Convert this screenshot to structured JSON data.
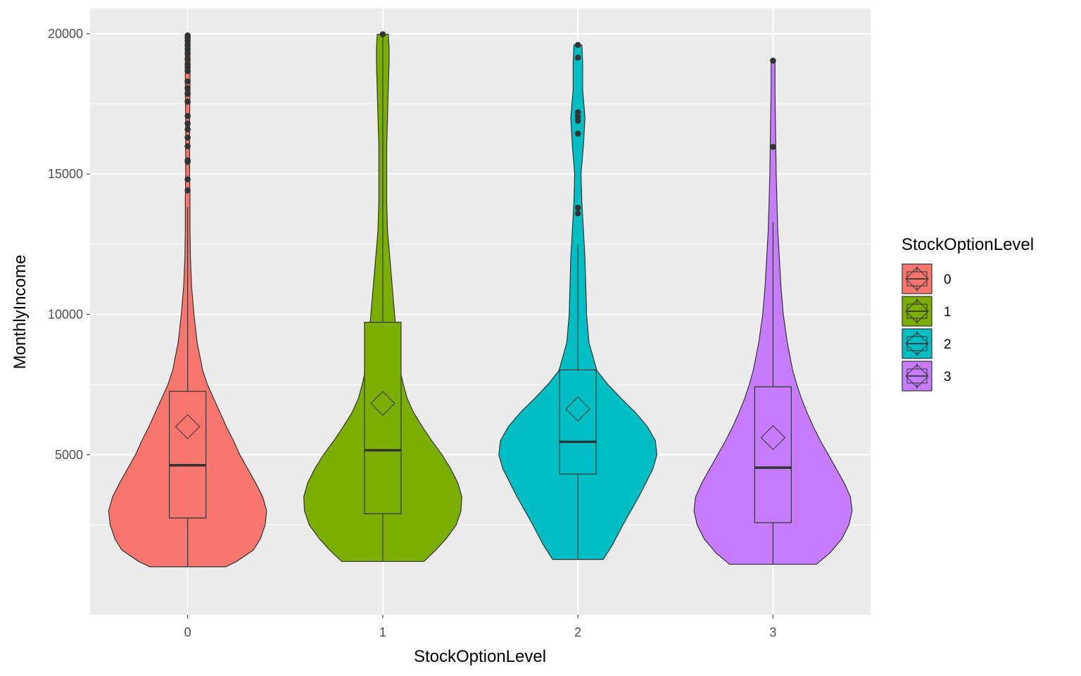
{
  "chart_data": {
    "type": "violin",
    "xlabel": "StockOptionLevel",
    "ylabel": "MonthlyIncome",
    "categories": [
      "0",
      "1",
      "2",
      "3"
    ],
    "ylim": [
      -700,
      20900
    ],
    "y_ticks": [
      5000,
      10000,
      15000,
      20000
    ],
    "y_tick_labels": [
      "5000",
      "10000",
      "15000",
      "20000"
    ],
    "grid": true,
    "legend": {
      "title": "StockOptionLevel",
      "position": "right",
      "entries": [
        "0",
        "1",
        "2",
        "3"
      ]
    },
    "colors": [
      "#F8766D",
      "#7CAE00",
      "#00BFC4",
      "#C77CFF"
    ],
    "series": [
      {
        "category": "0",
        "box": {
          "min": 1009,
          "q1": 2745,
          "median": 4625,
          "q3": 7260,
          "whisker_high": 13830,
          "mean": 6000
        },
        "outliers": [
          14420,
          14810,
          15440,
          15490,
          15990,
          16300,
          16590,
          16800,
          17070,
          17580,
          17860,
          18060,
          18300,
          18670,
          18800,
          18900,
          19100,
          19300,
          19450,
          19600,
          19750,
          19850,
          19940
        ],
        "density": [
          [
            1009,
            0.48
          ],
          [
            1200,
            0.62
          ],
          [
            1600,
            0.83
          ],
          [
            2000,
            0.92
          ],
          [
            2500,
            0.98
          ],
          [
            3000,
            1.0
          ],
          [
            3500,
            0.95
          ],
          [
            4000,
            0.86
          ],
          [
            4500,
            0.76
          ],
          [
            5000,
            0.66
          ],
          [
            5500,
            0.58
          ],
          [
            6000,
            0.49
          ],
          [
            6500,
            0.41
          ],
          [
            7000,
            0.33
          ],
          [
            7500,
            0.25
          ],
          [
            8000,
            0.19
          ],
          [
            9000,
            0.12
          ],
          [
            10000,
            0.08
          ],
          [
            11000,
            0.05
          ],
          [
            12000,
            0.035
          ],
          [
            13000,
            0.03
          ],
          [
            14000,
            0.03
          ],
          [
            15000,
            0.025
          ],
          [
            16000,
            0.025
          ],
          [
            17000,
            0.025
          ],
          [
            18000,
            0.03
          ],
          [
            19000,
            0.03
          ],
          [
            19940,
            0.03
          ]
        ]
      },
      {
        "category": "1",
        "box": {
          "min": 1200,
          "q1": 2900,
          "median": 5160,
          "q3": 9720,
          "whisker_high": 19980,
          "mean": 6830
        },
        "outliers": [
          19980
        ],
        "density": [
          [
            1200,
            0.52
          ],
          [
            1600,
            0.67
          ],
          [
            2000,
            0.8
          ],
          [
            2500,
            0.93
          ],
          [
            3000,
            0.99
          ],
          [
            3500,
            1.0
          ],
          [
            4000,
            0.95
          ],
          [
            4500,
            0.86
          ],
          [
            5000,
            0.75
          ],
          [
            5500,
            0.62
          ],
          [
            6000,
            0.5
          ],
          [
            6500,
            0.39
          ],
          [
            7000,
            0.31
          ],
          [
            7500,
            0.26
          ],
          [
            8000,
            0.22
          ],
          [
            9000,
            0.18
          ],
          [
            10000,
            0.15
          ],
          [
            11000,
            0.12
          ],
          [
            12000,
            0.09
          ],
          [
            13000,
            0.06
          ],
          [
            14000,
            0.05
          ],
          [
            15000,
            0.05
          ],
          [
            16000,
            0.05
          ],
          [
            17000,
            0.06
          ],
          [
            18000,
            0.07
          ],
          [
            19000,
            0.08
          ],
          [
            19500,
            0.08
          ],
          [
            19980,
            0.07
          ]
        ]
      },
      {
        "category": "2",
        "box": {
          "min": 1270,
          "q1": 4310,
          "median": 5460,
          "q3": 8020,
          "whisker_high": 12500,
          "mean": 6630
        },
        "outliers": [
          13600,
          13800,
          16440,
          16900,
          17050,
          17200,
          19150,
          19600
        ],
        "density": [
          [
            1270,
            0.32
          ],
          [
            1800,
            0.44
          ],
          [
            2500,
            0.57
          ],
          [
            3000,
            0.67
          ],
          [
            3500,
            0.77
          ],
          [
            4000,
            0.86
          ],
          [
            4500,
            0.95
          ],
          [
            5000,
            1.0
          ],
          [
            5500,
            0.98
          ],
          [
            6000,
            0.88
          ],
          [
            6500,
            0.73
          ],
          [
            7000,
            0.55
          ],
          [
            7500,
            0.38
          ],
          [
            8000,
            0.24
          ],
          [
            9000,
            0.14
          ],
          [
            10000,
            0.11
          ],
          [
            11000,
            0.1
          ],
          [
            12000,
            0.09
          ],
          [
            13000,
            0.07
          ],
          [
            14000,
            0.05
          ],
          [
            15000,
            0.04
          ],
          [
            16000,
            0.07
          ],
          [
            17000,
            0.09
          ],
          [
            18000,
            0.06
          ],
          [
            19000,
            0.06
          ],
          [
            19600,
            0.05
          ]
        ]
      },
      {
        "category": "3",
        "box": {
          "min": 1100,
          "q1": 2580,
          "median": 4540,
          "q3": 7420,
          "whisker_high": 13300,
          "mean": 5610
        },
        "outliers": [
          15970,
          19040
        ],
        "density": [
          [
            1100,
            0.55
          ],
          [
            1500,
            0.72
          ],
          [
            2000,
            0.87
          ],
          [
            2500,
            0.96
          ],
          [
            3000,
            1.0
          ],
          [
            3500,
            0.98
          ],
          [
            4000,
            0.9
          ],
          [
            4500,
            0.8
          ],
          [
            5000,
            0.7
          ],
          [
            5500,
            0.6
          ],
          [
            6000,
            0.51
          ],
          [
            6500,
            0.43
          ],
          [
            7000,
            0.36
          ],
          [
            7500,
            0.3
          ],
          [
            8000,
            0.25
          ],
          [
            9000,
            0.18
          ],
          [
            10000,
            0.13
          ],
          [
            11000,
            0.1
          ],
          [
            12000,
            0.08
          ],
          [
            13000,
            0.06
          ],
          [
            14000,
            0.05
          ],
          [
            15000,
            0.04
          ],
          [
            16000,
            0.035
          ],
          [
            17000,
            0.03
          ],
          [
            18000,
            0.025
          ],
          [
            19040,
            0.025
          ]
        ]
      }
    ]
  }
}
